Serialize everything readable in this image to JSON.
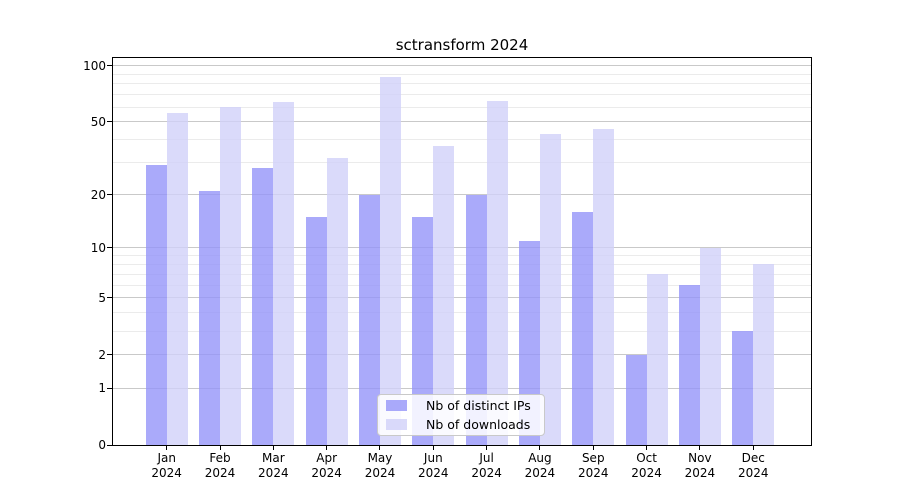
{
  "title": "sctransform 2024",
  "chart_data": {
    "type": "bar",
    "title": "sctransform 2024",
    "categories": [
      "Jan",
      "Feb",
      "Mar",
      "Apr",
      "May",
      "Jun",
      "Jul",
      "Aug",
      "Sep",
      "Oct",
      "Nov",
      "Dec"
    ],
    "year": "2024",
    "series": [
      {
        "name": "Nb of distinct IPs",
        "color_hex": "#aaaaf9",
        "fill": "rgba(149,149,249,0.8)",
        "values": [
          29,
          21,
          28,
          15,
          20,
          15,
          20,
          11,
          16,
          2,
          6,
          3
        ]
      },
      {
        "name": "Nb of downloads",
        "color_hex": "#dadaf9",
        "fill": "rgba(209,209,249,0.8)",
        "values": [
          56,
          60,
          64,
          32,
          87,
          37,
          65,
          43,
          46,
          7,
          10,
          8
        ]
      }
    ],
    "yscale": "log1p",
    "y_ticks": [
      0,
      1,
      2,
      5,
      10,
      20,
      50,
      100
    ],
    "y_minor_gridlines": [
      3,
      4,
      6,
      7,
      8,
      9,
      30,
      40,
      60,
      70,
      80,
      90
    ],
    "ylim": [
      0,
      110
    ],
    "grid": true,
    "legend_position": "lower center"
  }
}
